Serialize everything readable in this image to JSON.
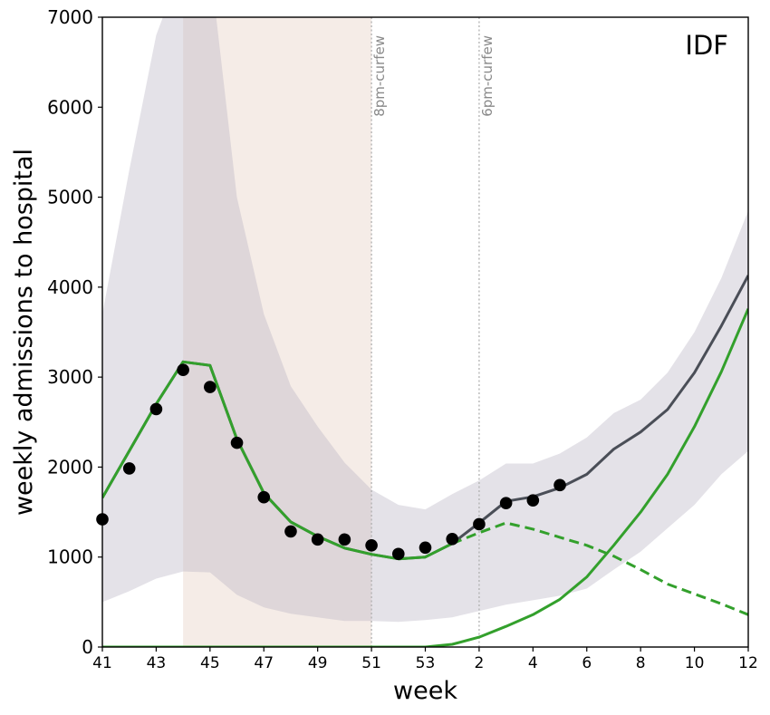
{
  "chart_data": {
    "type": "line",
    "region_label": "IDF",
    "xlabel": "week",
    "ylabel": "weekly admissions to hospital",
    "x_tick_labels": [
      "41",
      "43",
      "45",
      "47",
      "49",
      "51",
      "53",
      "2",
      "4",
      "6",
      "8",
      "10",
      "12"
    ],
    "y_tick_labels": [
      "0",
      "1000",
      "2000",
      "3000",
      "4000",
      "5000",
      "6000",
      "7000"
    ],
    "ylim": [
      0,
      7000
    ],
    "xlim": [
      0,
      24
    ],
    "x_note": "x positions are sequential weeks: 0=week 41 ... 12=week 53, 13=week 1, 14=week 2 ... 24=week 12",
    "shaded_period": {
      "from": 3,
      "to": 10,
      "color": "#ecdcd4"
    },
    "vertical_markers": [
      {
        "x": 10,
        "label": "8pm-curfew"
      },
      {
        "x": 14,
        "label": "6pm-curfew"
      }
    ],
    "observed": {
      "x": [
        0,
        1,
        2,
        3,
        4,
        5,
        6,
        7,
        8,
        9,
        10,
        11,
        12,
        13,
        14,
        15,
        16,
        17
      ],
      "values": [
        1420,
        1985,
        2645,
        3080,
        2890,
        2270,
        1665,
        1285,
        1195,
        1195,
        1130,
        1035,
        1105,
        1200,
        1365,
        1600,
        1630,
        1800
      ]
    },
    "ci_band": {
      "x": [
        0,
        1,
        2,
        3,
        4,
        5,
        6,
        7,
        8,
        9,
        10,
        11,
        12,
        13,
        14,
        15,
        16,
        17,
        18,
        19,
        20,
        21,
        22,
        23,
        24
      ],
      "lower": [
        500,
        620,
        760,
        840,
        830,
        580,
        440,
        370,
        330,
        290,
        290,
        280,
        300,
        330,
        400,
        470,
        520,
        570,
        650,
        860,
        1060,
        1320,
        1580,
        1920,
        2180
      ],
      "upper": [
        3700,
        5300,
        6800,
        7600,
        7600,
        5000,
        3700,
        2900,
        2450,
        2050,
        1750,
        1580,
        1530,
        1700,
        1850,
        2040,
        2040,
        2150,
        2330,
        2600,
        2750,
        3050,
        3500,
        4100,
        4850
      ]
    },
    "series": [
      {
        "x": [
          0,
          1,
          2,
          3,
          4,
          5,
          6,
          7,
          8,
          9,
          10,
          11,
          12,
          13,
          14,
          15,
          16,
          17,
          18,
          19,
          20,
          21,
          22,
          23,
          24
        ],
        "values": [
          1660,
          2180,
          2700,
          3170,
          3130,
          2310,
          1710,
          1390,
          1230,
          1100,
          1030,
          980,
          1000,
          1150,
          1380,
          1620,
          1670,
          1770,
          1920,
          2200,
          2390,
          2640,
          3050,
          3570,
          4130
        ],
        "color": "#4a4e57",
        "style": "solid"
      },
      {
        "x": [
          0,
          1,
          2,
          3,
          4,
          5,
          6,
          7,
          8,
          9,
          10,
          11,
          12,
          13
        ],
        "values": [
          1660,
          2180,
          2700,
          3170,
          3130,
          2310,
          1710,
          1390,
          1230,
          1100,
          1030,
          980,
          1000,
          1150
        ],
        "color": "#33a02c",
        "style": "solid"
      },
      {
        "x": [
          13,
          14,
          15,
          16,
          17,
          18,
          19,
          20,
          21,
          22,
          23,
          24
        ],
        "values": [
          1150,
          1270,
          1380,
          1310,
          1220,
          1130,
          1010,
          860,
          700,
          590,
          480,
          360
        ],
        "color": "#33a02c",
        "style": "dashed"
      },
      {
        "x": [
          0,
          1,
          2,
          3,
          4,
          5,
          6,
          7,
          8,
          9,
          10,
          11,
          12,
          13,
          14,
          15,
          16,
          17,
          18,
          19,
          20,
          21,
          22,
          23,
          24
        ],
        "values": [
          0,
          0,
          0,
          0,
          0,
          0,
          0,
          0,
          0,
          0,
          0,
          0,
          0,
          30,
          110,
          230,
          360,
          530,
          780,
          1130,
          1500,
          1920,
          2450,
          3060,
          3760
        ],
        "color": "#33a02c",
        "style": "solid"
      }
    ]
  }
}
